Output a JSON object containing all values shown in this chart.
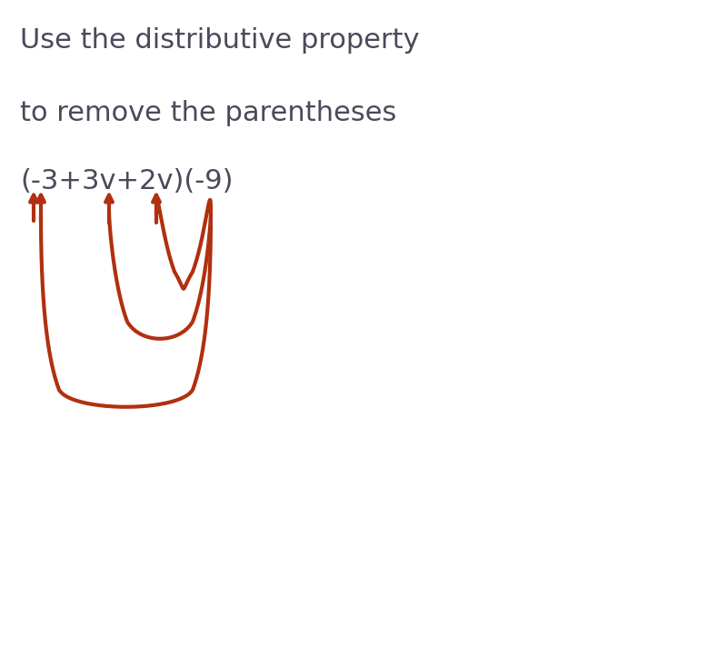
{
  "line1": "Use the distributive property",
  "line2": "to remove the parentheses",
  "expression": "(-3+3v+2v)(-9)",
  "text_color": "#4a4a5a",
  "arrow_color": "#b03010",
  "bg_color": "#ffffff",
  "figsize": [
    8.0,
    7.34
  ],
  "dpi": 100
}
